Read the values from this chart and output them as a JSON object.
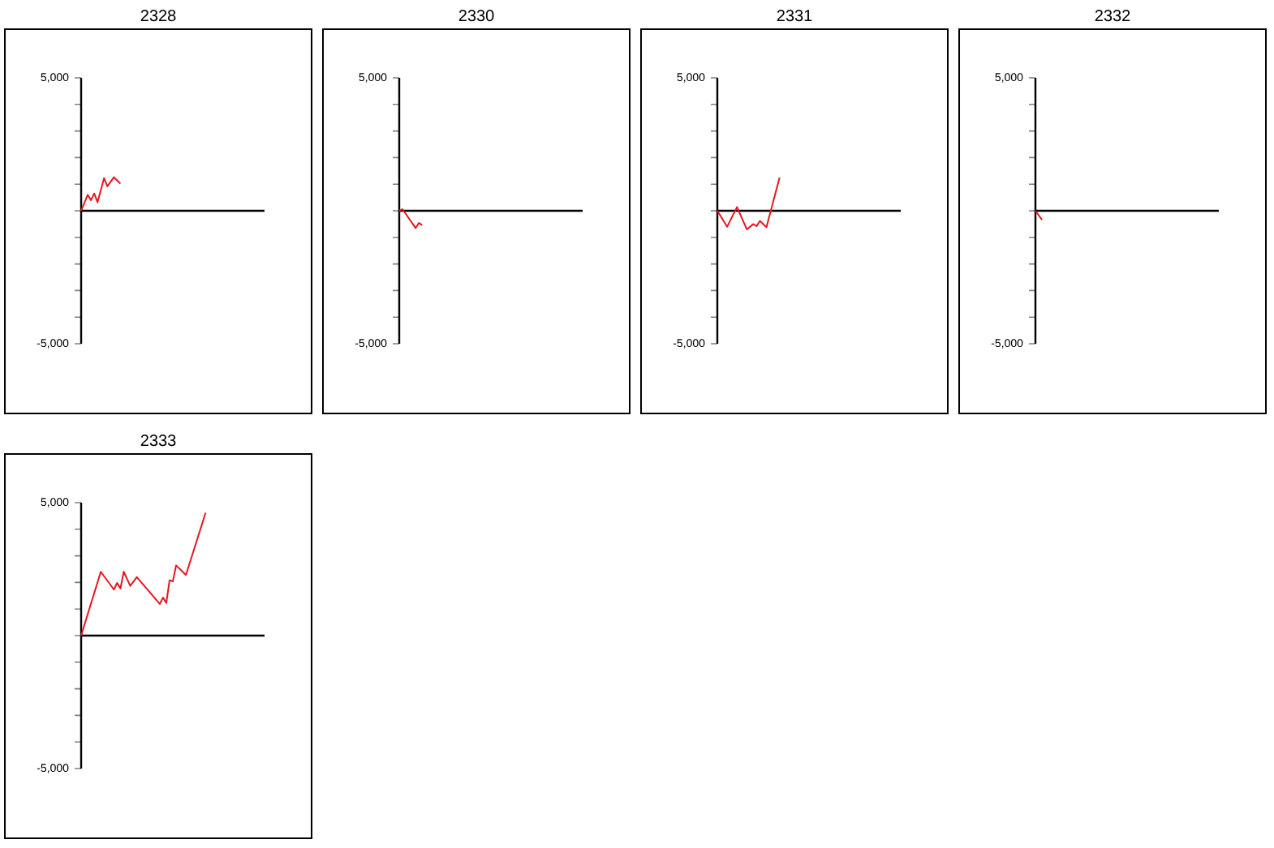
{
  "chart_data": [
    {
      "type": "line",
      "title": "2328",
      "categories": [
        null,
        null,
        null,
        null,
        null,
        null,
        null,
        null,
        null,
        null,
        null,
        null,
        null,
        null,
        null,
        null,
        null,
        null,
        null,
        null,
        null,
        null,
        null,
        null,
        null,
        null,
        null,
        null,
        null,
        null,
        null,
        null,
        null,
        null,
        null,
        null,
        null,
        null,
        null,
        null,
        null,
        null,
        null,
        null,
        null,
        null,
        null,
        null,
        null,
        null,
        null,
        null,
        null,
        null,
        null,
        null,
        null
      ],
      "series": [
        {
          "color": "#e8141e",
          "values": [
            0,
            null,
            600,
            400,
            650,
            320,
            null,
            1230,
            920,
            null,
            1260,
            null,
            1020,
            null,
            null,
            null,
            null,
            null,
            null,
            null,
            null,
            null,
            null,
            null,
            null,
            null,
            null,
            null,
            null,
            null,
            null,
            null,
            null,
            null,
            null,
            null,
            null,
            null,
            null,
            null,
            null,
            null,
            null,
            null,
            null,
            null,
            null,
            null,
            null,
            null,
            null,
            null,
            null,
            null,
            null,
            null,
            null
          ]
        }
      ],
      "ylim": [
        -5000,
        5000
      ],
      "yticks": [
        {
          "value": -5000,
          "label": "-5,000"
        },
        {
          "value": -4000,
          "label": null
        },
        {
          "value": -3000,
          "label": null
        },
        {
          "value": -2000,
          "label": null
        },
        {
          "value": -1000,
          "label": null
        },
        {
          "value": 0,
          "label": null
        },
        {
          "value": 1000,
          "label": null
        },
        {
          "value": 2000,
          "label": null
        },
        {
          "value": 3000,
          "label": null
        },
        {
          "value": 4000,
          "label": null
        },
        {
          "value": 5000,
          "label": "5,000"
        }
      ],
      "tick_labels": "y"
    },
    {
      "type": "line",
      "title": "2330",
      "categories": [
        null,
        null,
        null,
        null,
        null,
        null,
        null,
        null,
        null,
        null,
        null,
        null,
        null,
        null,
        null,
        null,
        null,
        null,
        null,
        null,
        null,
        null,
        null,
        null,
        null,
        null,
        null,
        null,
        null,
        null,
        null,
        null,
        null,
        null,
        null,
        null,
        null,
        null,
        null,
        null,
        null,
        null,
        null,
        null,
        null,
        null,
        null,
        null,
        null,
        null,
        null,
        null,
        null,
        null,
        null,
        null,
        null
      ],
      "series": [
        {
          "color": "#e8141e",
          "values": [
            0,
            60,
            null,
            null,
            null,
            -650,
            -460,
            -540,
            null,
            null,
            null,
            null,
            null,
            null,
            null,
            null,
            null,
            null,
            null,
            null,
            null,
            null,
            null,
            null,
            null,
            null,
            null,
            null,
            null,
            null,
            null,
            null,
            null,
            null,
            null,
            null,
            null,
            null,
            null,
            null,
            null,
            null,
            null,
            null,
            null,
            null,
            null,
            null,
            null,
            null,
            null,
            null,
            null,
            null,
            null,
            null,
            null
          ]
        }
      ],
      "ylim": [
        -5000,
        5000
      ],
      "yticks": [
        {
          "value": -5000,
          "label": "-5,000"
        },
        {
          "value": -4000,
          "label": null
        },
        {
          "value": -3000,
          "label": null
        },
        {
          "value": -2000,
          "label": null
        },
        {
          "value": -1000,
          "label": null
        },
        {
          "value": 0,
          "label": null
        },
        {
          "value": 1000,
          "label": null
        },
        {
          "value": 2000,
          "label": null
        },
        {
          "value": 3000,
          "label": null
        },
        {
          "value": 4000,
          "label": null
        },
        {
          "value": 5000,
          "label": "5,000"
        }
      ],
      "tick_labels": "y"
    },
    {
      "type": "line",
      "title": "2331",
      "categories": [
        null,
        null,
        null,
        null,
        null,
        null,
        null,
        null,
        null,
        null,
        null,
        null,
        null,
        null,
        null,
        null,
        null,
        null,
        null,
        null,
        null,
        null,
        null,
        null,
        null,
        null,
        null,
        null,
        null,
        null,
        null,
        null,
        null,
        null,
        null,
        null,
        null,
        null,
        null,
        null,
        null,
        null,
        null,
        null,
        null,
        null,
        null,
        null,
        null,
        null,
        null,
        null,
        null,
        null,
        null,
        null,
        null
      ],
      "series": [
        {
          "color": "#e8141e",
          "values": [
            0,
            null,
            null,
            -600,
            null,
            null,
            140,
            null,
            null,
            -700,
            null,
            -500,
            -580,
            -380,
            null,
            -620,
            null,
            null,
            null,
            1250,
            null,
            null,
            null,
            null,
            null,
            null,
            null,
            null,
            null,
            null,
            null,
            null,
            null,
            null,
            null,
            null,
            null,
            null,
            null,
            null,
            null,
            null,
            null,
            null,
            null,
            null,
            null,
            null,
            null,
            null,
            null,
            null,
            null,
            null,
            null,
            null,
            null
          ]
        }
      ],
      "ylim": [
        -5000,
        5000
      ],
      "yticks": [
        {
          "value": -5000,
          "label": "-5,000"
        },
        {
          "value": -4000,
          "label": null
        },
        {
          "value": -3000,
          "label": null
        },
        {
          "value": -2000,
          "label": null
        },
        {
          "value": -1000,
          "label": null
        },
        {
          "value": 0,
          "label": null
        },
        {
          "value": 1000,
          "label": null
        },
        {
          "value": 2000,
          "label": null
        },
        {
          "value": 3000,
          "label": null
        },
        {
          "value": 4000,
          "label": null
        },
        {
          "value": 5000,
          "label": "5,000"
        }
      ],
      "tick_labels": "y"
    },
    {
      "type": "line",
      "title": "2332",
      "categories": [
        null,
        null,
        null,
        null,
        null,
        null,
        null,
        null,
        null,
        null,
        null,
        null,
        null,
        null,
        null,
        null,
        null,
        null,
        null,
        null,
        null,
        null,
        null,
        null,
        null,
        null,
        null,
        null,
        null,
        null,
        null,
        null,
        null,
        null,
        null,
        null,
        null,
        null,
        null,
        null,
        null,
        null,
        null,
        null,
        null,
        null,
        null,
        null,
        null,
        null,
        null,
        null,
        null,
        null,
        null,
        null,
        null
      ],
      "series": [
        {
          "color": "#e8141e",
          "values": [
            0,
            null,
            -340,
            null,
            null,
            null,
            null,
            null,
            null,
            null,
            null,
            null,
            null,
            null,
            null,
            null,
            null,
            null,
            null,
            null,
            null,
            null,
            null,
            null,
            null,
            null,
            null,
            null,
            null,
            null,
            null,
            null,
            null,
            null,
            null,
            null,
            null,
            null,
            null,
            null,
            null,
            null,
            null,
            null,
            null,
            null,
            null,
            null,
            null,
            null,
            null,
            null,
            null,
            null,
            null,
            null,
            null
          ]
        }
      ],
      "ylim": [
        -5000,
        5000
      ],
      "yticks": [
        {
          "value": -5000,
          "label": "-5,000"
        },
        {
          "value": -4000,
          "label": null
        },
        {
          "value": -3000,
          "label": null
        },
        {
          "value": -2000,
          "label": null
        },
        {
          "value": -1000,
          "label": null
        },
        {
          "value": 0,
          "label": null
        },
        {
          "value": 1000,
          "label": null
        },
        {
          "value": 2000,
          "label": null
        },
        {
          "value": 3000,
          "label": null
        },
        {
          "value": 4000,
          "label": null
        },
        {
          "value": 5000,
          "label": "5,000"
        }
      ],
      "tick_labels": "y"
    },
    {
      "type": "line",
      "title": "2333",
      "categories": [
        null,
        null,
        null,
        null,
        null,
        null,
        null,
        null,
        null,
        null,
        null,
        null,
        null,
        null,
        null,
        null,
        null,
        null,
        null,
        null,
        null,
        null,
        null,
        null,
        null,
        null,
        null,
        null,
        null,
        null,
        null,
        null,
        null,
        null,
        null,
        null,
        null,
        null,
        null,
        null,
        null,
        null,
        null,
        null,
        null,
        null,
        null,
        null,
        null,
        null,
        null,
        null,
        null,
        null,
        null,
        null,
        null
      ],
      "series": [
        {
          "color": "#e8141e",
          "values": [
            0,
            null,
            null,
            null,
            null,
            null,
            2400,
            null,
            null,
            null,
            1730,
            1980,
            1770,
            2400,
            null,
            1870,
            null,
            2200,
            null,
            null,
            null,
            null,
            null,
            null,
            1190,
            1430,
            1230,
            2080,
            2040,
            2640,
            null,
            null,
            2280,
            null,
            null,
            null,
            null,
            null,
            4620,
            null,
            null,
            null,
            null,
            null,
            null,
            null,
            null,
            null,
            null,
            null,
            null,
            null,
            null,
            null,
            null,
            null,
            null
          ]
        }
      ],
      "ylim": [
        -5000,
        5000
      ],
      "yticks": [
        {
          "value": -5000,
          "label": "-5,000"
        },
        {
          "value": -4000,
          "label": null
        },
        {
          "value": -3000,
          "label": null
        },
        {
          "value": -2000,
          "label": null
        },
        {
          "value": -1000,
          "label": null
        },
        {
          "value": 0,
          "label": null
        },
        {
          "value": 1000,
          "label": null
        },
        {
          "value": 2000,
          "label": null
        },
        {
          "value": 3000,
          "label": null
        },
        {
          "value": 4000,
          "label": null
        },
        {
          "value": 5000,
          "label": "5,000"
        }
      ],
      "tick_labels": "y"
    }
  ]
}
